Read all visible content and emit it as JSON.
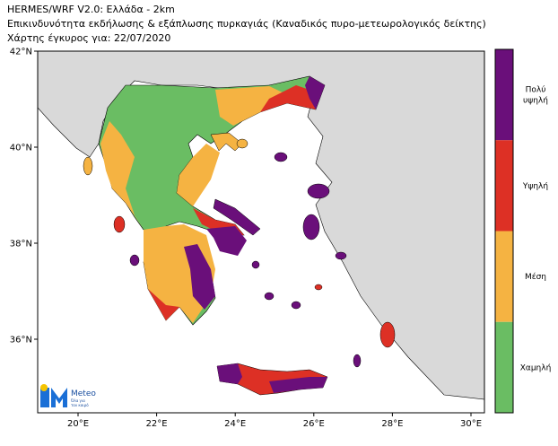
{
  "header": {
    "title": "HERMES/WRF V2.0: Ελλάδα - 2km",
    "subtitle": "Επικινδυνότητα εκδήλωσης & εξάπλωσης πυρκαγιάς (Καναδικός πυρο-μετεωρολογικός δείκτης)",
    "date_line": "Χάρτης έγκυρος για: 22/07/2020"
  },
  "map": {
    "lon_ticks": [
      "20°E",
      "22°E",
      "24°E",
      "26°E",
      "28°E",
      "30°E"
    ],
    "lat_ticks": [
      "42°N",
      "40°N",
      "38°N",
      "36°N"
    ]
  },
  "legend": {
    "levels": [
      {
        "label": [
          "Πολύ",
          "υψηλή"
        ],
        "color": "#6a0f7a"
      },
      {
        "label": [
          "Υψηλή"
        ],
        "color": "#dd3025"
      },
      {
        "label": [
          "Μέση"
        ],
        "color": "#f5b342"
      },
      {
        "label": [
          "Χαμηλή"
        ],
        "color": "#6abd63"
      }
    ]
  },
  "logo": {
    "name": "Meteo",
    "tagline": [
      "Όλα για",
      "τον καιρό"
    ]
  }
}
